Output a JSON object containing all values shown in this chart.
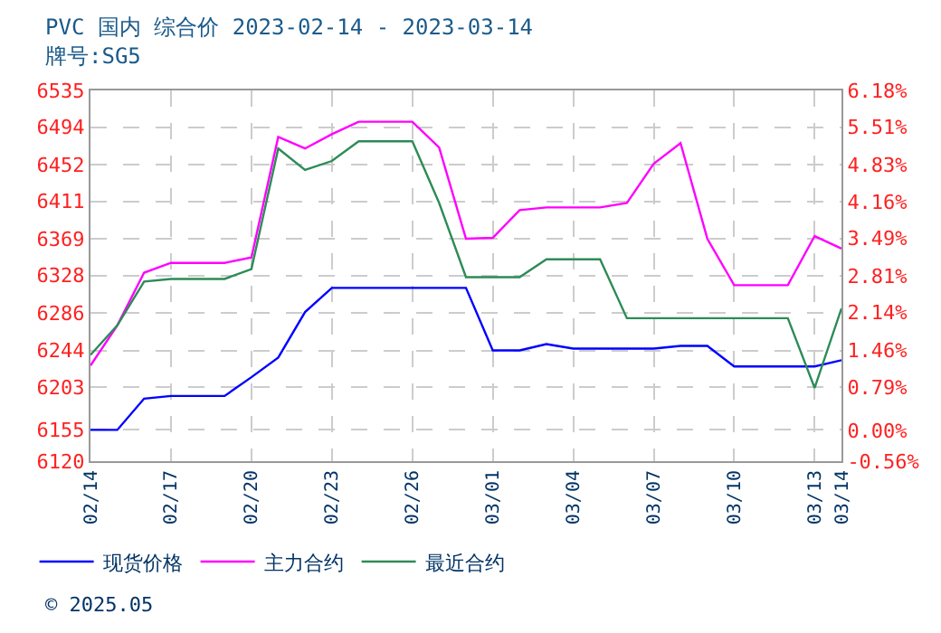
{
  "chart_data": {
    "type": "line",
    "title": "PVC 国内 综合价 2023-02-14 - 2023-03-14",
    "subtitle": "牌号:SG5",
    "x": [
      "2023-02-14",
      "2023-02-15",
      "2023-02-16",
      "2023-02-17",
      "2023-02-18",
      "2023-02-19",
      "2023-02-20",
      "2023-02-21",
      "2023-02-22",
      "2023-02-23",
      "2023-02-24",
      "2023-02-25",
      "2023-02-26",
      "2023-02-27",
      "2023-02-28",
      "2023-03-01",
      "2023-03-02",
      "2023-03-03",
      "2023-03-04",
      "2023-03-05",
      "2023-03-06",
      "2023-03-07",
      "2023-03-08",
      "2023-03-09",
      "2023-03-10",
      "2023-03-11",
      "2023-03-12",
      "2023-03-13",
      "2023-03-14"
    ],
    "series": [
      {
        "name": "现货价格",
        "color": "#0000ff",
        "values": [
          6155,
          6155,
          6190,
          6193,
          6193,
          6193,
          6214,
          6236,
          6287,
          6314,
          6314,
          6314,
          6314,
          6314,
          6314,
          6244,
          6244,
          6251,
          6246,
          6246,
          6246,
          6246,
          6249,
          6249,
          6226,
          6226,
          6226,
          6226,
          6233
        ]
      },
      {
        "name": "主力合约",
        "color": "#ff00ff",
        "values": [
          6227,
          6272,
          6331,
          6342,
          6342,
          6342,
          6348,
          6483,
          6470,
          6486,
          6500,
          6500,
          6500,
          6471,
          6369,
          6370,
          6401,
          6404,
          6404,
          6404,
          6409,
          6453,
          6476,
          6369,
          6317,
          6317,
          6317,
          6372,
          6358
        ]
      },
      {
        "name": "最近合约",
        "color": "#2e8b57",
        "values": [
          6239,
          6272,
          6321,
          6324,
          6324,
          6324,
          6335,
          6470,
          6446,
          6456,
          6478,
          6478,
          6478,
          6409,
          6326,
          6326,
          6326,
          6346,
          6346,
          6346,
          6280,
          6280,
          6280,
          6280,
          6280,
          6280,
          6280,
          6202,
          6291
        ]
      }
    ],
    "xlim": [
      "2023-02-14",
      "2023-03-14"
    ],
    "xticks": [
      {
        "value": "2023-02-14",
        "label": "02/14"
      },
      {
        "value": "2023-02-17",
        "label": "02/17"
      },
      {
        "value": "2023-02-20",
        "label": "02/20"
      },
      {
        "value": "2023-02-23",
        "label": "02/23"
      },
      {
        "value": "2023-02-26",
        "label": "02/26"
      },
      {
        "value": "2023-03-01",
        "label": "03/01"
      },
      {
        "value": "2023-03-04",
        "label": "03/04"
      },
      {
        "value": "2023-03-07",
        "label": "03/07"
      },
      {
        "value": "2023-03-10",
        "label": "03/10"
      },
      {
        "value": "2023-03-13",
        "label": "03/13"
      },
      {
        "value": "2023-03-14",
        "label": "03/14"
      }
    ],
    "ylim": [
      6120,
      6535
    ],
    "yticks": [
      6120,
      6155,
      6203,
      6244,
      6286,
      6328,
      6369,
      6411,
      6452,
      6494,
      6535
    ],
    "y2lim": [
      -0.56,
      6.18
    ],
    "y2ticks": [
      {
        "value": -0.56,
        "label": "-0.56%"
      },
      {
        "value": 0,
        "label": "0.00%"
      },
      {
        "value": 0.79,
        "label": "0.79%"
      },
      {
        "value": 1.46,
        "label": "1.46%"
      },
      {
        "value": 2.14,
        "label": "2.14%"
      },
      {
        "value": 2.81,
        "label": "2.81%"
      },
      {
        "value": 3.49,
        "label": "3.49%"
      },
      {
        "value": 4.16,
        "label": "4.16%"
      },
      {
        "value": 4.83,
        "label": "4.83%"
      },
      {
        "value": 5.51,
        "label": "5.51%"
      },
      {
        "value": 6.18,
        "label": "6.18%"
      }
    ],
    "annotations": [
      "© 2025.05"
    ],
    "grid": true,
    "legend": "bottom",
    "marker": "none",
    "line_style": "solid"
  }
}
